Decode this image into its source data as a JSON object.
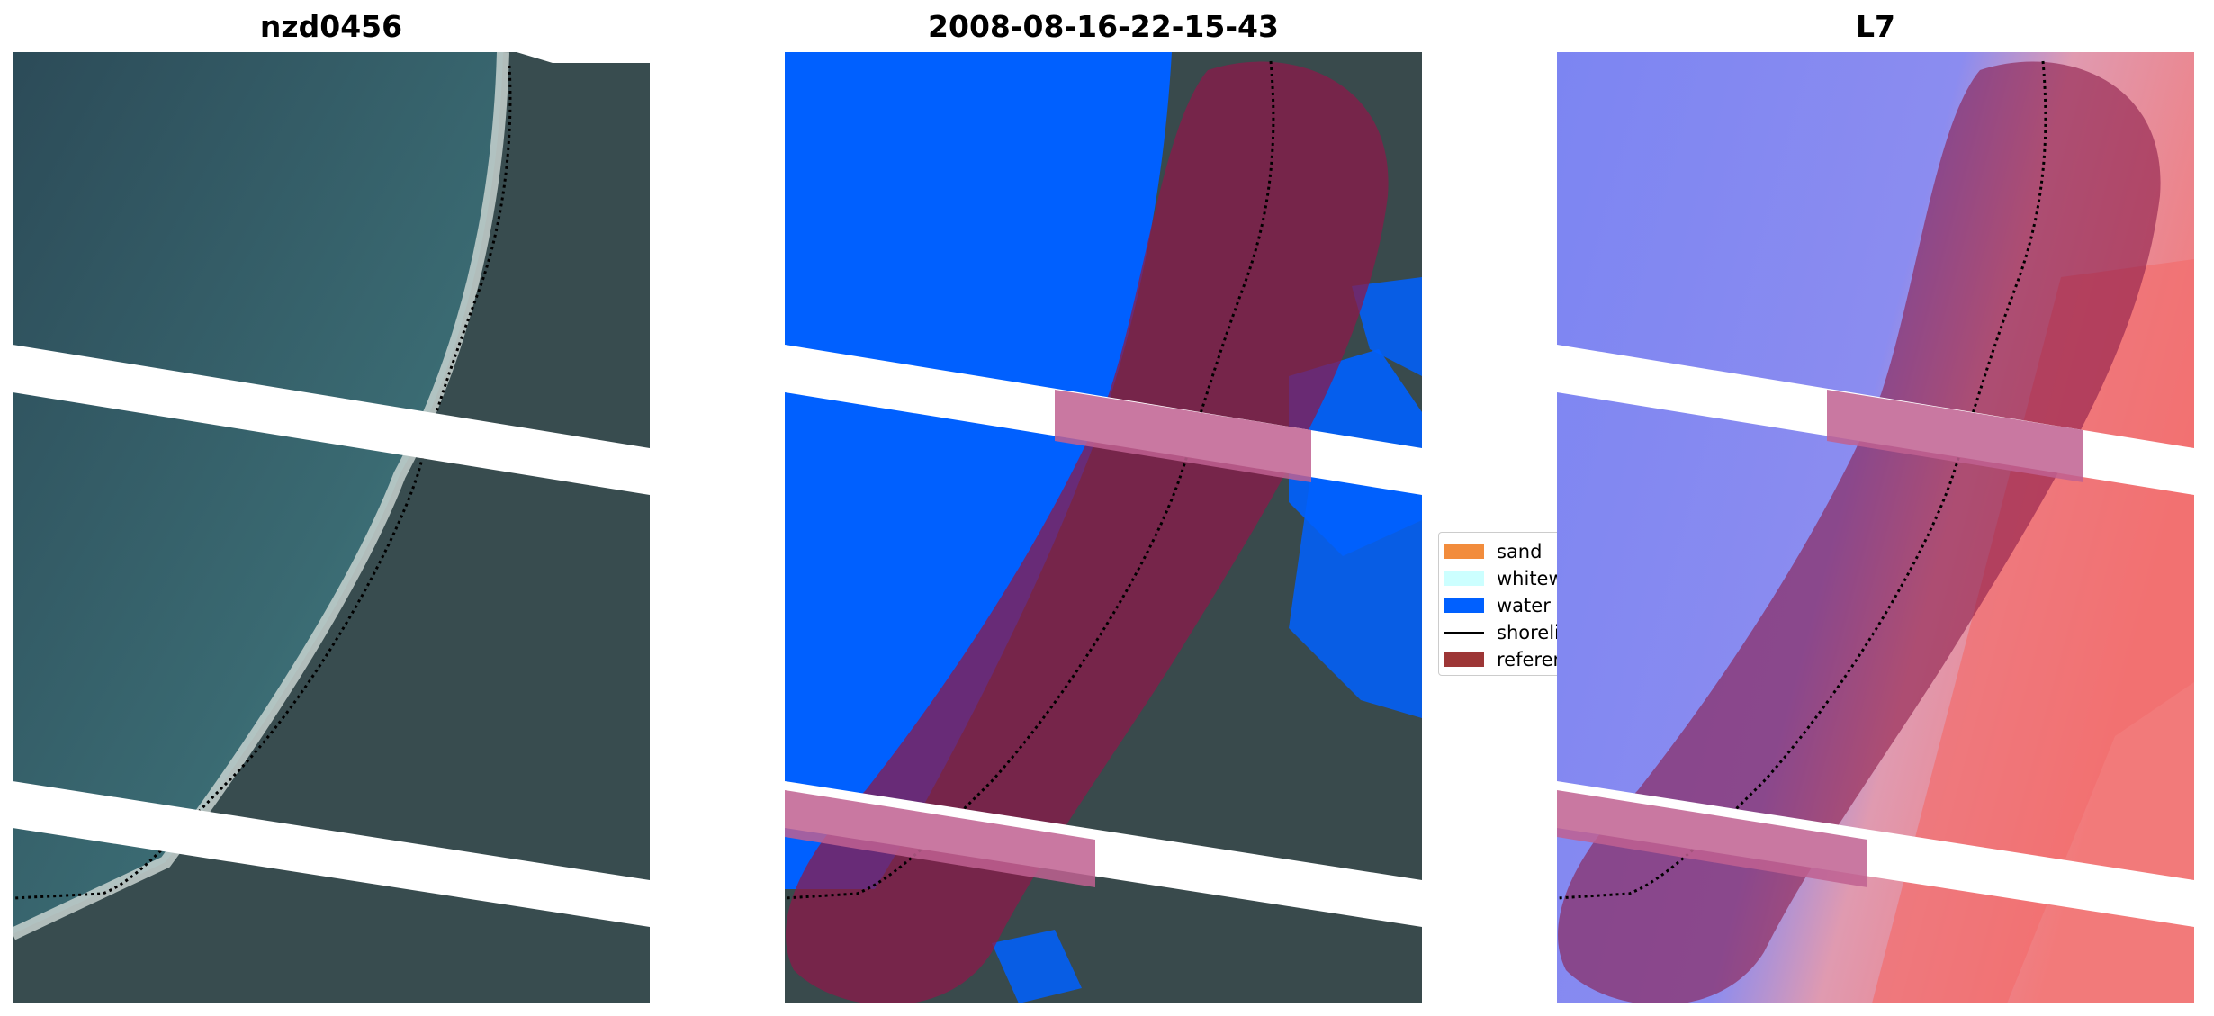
{
  "panels": [
    {
      "title": "nzd0456",
      "kind": "rgb"
    },
    {
      "title": "2008-08-16-22-15-43",
      "kind": "classification"
    },
    {
      "title": "L7",
      "kind": "index"
    }
  ],
  "legend": {
    "items": [
      {
        "label": "sand",
        "color": "#f28c3c",
        "icon": "swatch"
      },
      {
        "label": "whitewater",
        "color": "#ccffff",
        "icon": "swatch"
      },
      {
        "label": "water",
        "color": "#0060ff",
        "icon": "swatch"
      },
      {
        "label": "shoreline",
        "color": "#000000",
        "icon": "line"
      },
      {
        "label": "reference shoreline buffer",
        "color": "#9d3636",
        "icon": "swatch"
      }
    ]
  },
  "colors": {
    "water_class": "#0060ff",
    "buffer_overlay": "#8b1a4a",
    "nodata_stripe": "#ffffff",
    "sea_rgb": "#2f5560",
    "land_rgb": "#354a4c",
    "index_water": "#6670f0",
    "index_land": "#f0a0a8"
  }
}
